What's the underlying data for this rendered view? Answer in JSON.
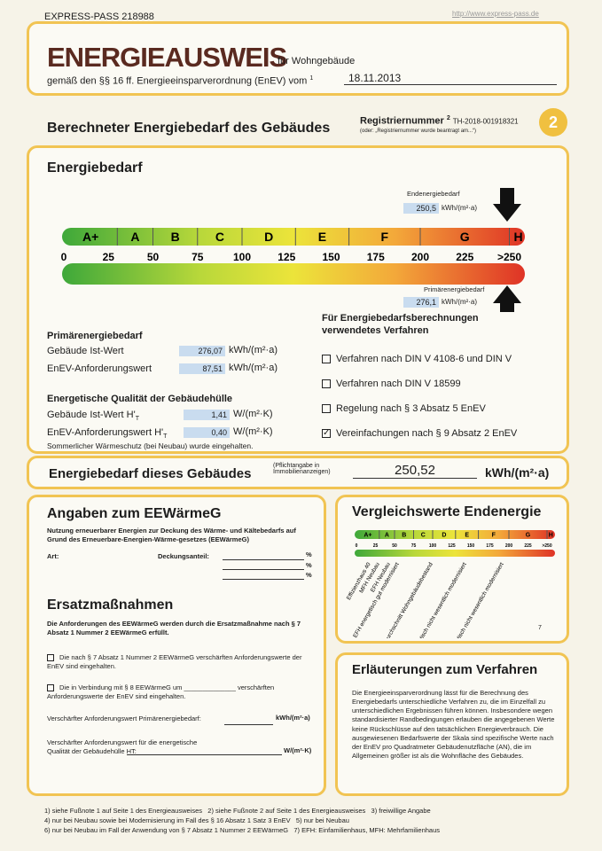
{
  "header": {
    "pass_id": "EXPRESS-PASS 218988",
    "url": "http://www.express-pass.de",
    "title": "ENERGIEAUSWEIS",
    "title_suffix": "für Wohngebäude",
    "subtitle": "gemäß den §§ 16 ff. Energieeinsparverordnung (EnEV) vom",
    "subtitle_note": "1",
    "date": "18.11.2013"
  },
  "section": {
    "heading": "Berechneter Energiebedarf des Gebäudes",
    "reg_label": "Registriernummer",
    "reg_note": "2",
    "reg_number": "TH-2018-001918321",
    "reg_hint": "(oder: „Registriernummer wurde beantragt am...“)",
    "page_number": "2"
  },
  "energy": {
    "heading": "Energiebedarf",
    "end_label": "Endenergiebedarf",
    "end_value": "250,5",
    "end_unit": "kWh/(m²·a)",
    "classes": [
      "A+",
      "A",
      "B",
      "C",
      "D",
      "E",
      "F",
      "G",
      "H"
    ],
    "scale": [
      "0",
      "25",
      "50",
      "75",
      "100",
      "125",
      "150",
      "175",
      "200",
      "225",
      ">250"
    ],
    "primary_label": "Primärenergiebedarf",
    "primary_value": "276,1",
    "primary_unit": "kWh/(m²·a)"
  },
  "primary": {
    "heading": "Primärenergiebedarf",
    "rows": [
      {
        "label": "Gebäude Ist-Wert",
        "value": "276,07",
        "unit": "kWh/(m²·a)"
      },
      {
        "label": "EnEV-Anforderungswert",
        "value": "87,51",
        "unit": "kWh/(m²·a)"
      }
    ]
  },
  "envelope": {
    "heading": "Energetische Qualität der Gebäudehülle",
    "rows": [
      {
        "label": "Gebäude Ist-Wert H'",
        "sub": "T",
        "value": "1,41",
        "unit": "W/(m²·K)"
      },
      {
        "label": "EnEV-Anforderungswert H'",
        "sub": "T",
        "value": "0,40",
        "unit": "W/(m²·K)"
      }
    ],
    "note": "Sommerlicher Wärmeschutz (bei Neubau) wurde eingehalten."
  },
  "methods": {
    "heading": "Für Energiebedarfsberechnungen verwendetes Verfahren",
    "items": [
      {
        "text": "Verfahren nach DIN V 4108-6 und DIN V",
        "checked": false
      },
      {
        "text": "Verfahren nach DIN V 18599",
        "checked": false
      },
      {
        "text": "Regelung nach § 3 Absatz 5 EnEV",
        "checked": false
      },
      {
        "text": "Vereinfachungen nach § 9 Absatz 2 EnEV",
        "checked": true
      }
    ]
  },
  "total": {
    "label": "Energiebedarf dieses Gebäudes",
    "note": "(Pflichtangabe in Immobilienanzeigen)",
    "value": "250,52",
    "unit": "kWh/(m²·a)"
  },
  "eewaerme": {
    "heading": "Angaben zum EEWärmeG",
    "intro": "Nutzung erneuerbarer Energien zur Deckung des Wärme- und Kältebedarfs auf Grund des Erneuerbare-Energien-Wärme-gesetzes (EEWärmeG)",
    "art_label": "Art:",
    "coverage_label": "Deckungsanteil:",
    "percent": "%"
  },
  "replacement": {
    "heading": "Ersatzmaßnahmen",
    "intro": "Die Anforderungen des EEWärmeG werden durch die Ersatzmaßnahme nach § 7 Absatz 1 Nummer 2 EEWärmeG erfüllt.",
    "options": [
      "Die nach § 7 Absatz 1 Nummer 2 EEWärmeG verschärften Anforderungswerte der EnEV sind eingehalten.",
      "Die in Verbindung mit § 8 EEWärmeG um ______________ verschärften Anforderungswerte der EnEV sind eingehalten."
    ],
    "primary_label": "Verschärfter Anforderungswert Primärenergiebedarf:",
    "primary_unit": "kWh/(m²·a)",
    "envelope_label": "Verschärfter Anforderungswert für die energetische Qualität der Gebäudehülle HT:",
    "envelope_unit": "W/(m²·K)"
  },
  "comparison": {
    "heading": "Vergleichswerte Endenergie",
    "labels": [
      "Effizienzhaus 40",
      "MFH Neubau",
      "EFH Neubau",
      "EFH energetisch gut modernisiert",
      "Durchschnitt Wohngebäudebestand",
      "MFH energetisch nicht wesentlich modernisiert",
      "EFH energetisch nicht wesentlich modernisiert"
    ],
    "footnote": "7"
  },
  "explanation": {
    "heading": "Erläuterungen zum Verfahren",
    "text": "Die Energieeinsparverordnung lässt für die Berechnung des Energiebedarfs unterschiedliche Verfahren zu, die im Einzelfall zu unterschiedlichen Ergebnissen führen können. Insbesondere wegen standardisierter Randbedingungen erlauben die angegebenen Werte keine Rückschlüsse auf den tatsächlichen Energieverbrauch. Die ausgewiesenen Bedarfswerte der Skala sind spezifische Werte nach der EnEV pro Quadratmeter Gebäudenutzfläche (AN), die im Allgemeinen größer ist als die Wohnfläche des Gebäudes."
  },
  "footnotes": [
    "1) siehe Fußnote 1 auf Seite 1 des Energieausweises   2) siehe Fußnote 2 auf Seite 1 des Energieausweises   3) freiwillige Angabe",
    "4) nur bei Neubau sowie bei Modernisierung im Fall des § 16 Absatz 1 Satz 3 EnEV   5) nur bei Neubau",
    "6) nur bei Neubau im Fall der Anwendung von § 7 Absatz 1 Nummer 2 EEWärmeG   7) EFH: Einfamilienhaus, MFH: Mehrfamilienhaus"
  ]
}
